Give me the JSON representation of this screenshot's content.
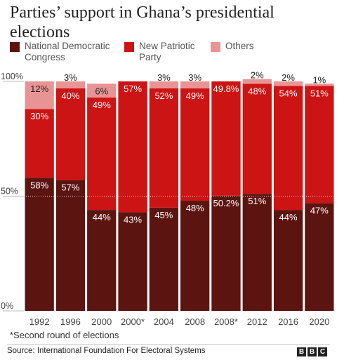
{
  "title": "Parties’ support in Ghana’s presidential elections",
  "legend": [
    {
      "label": "National Democratic Congress",
      "color": "#5c1410"
    },
    {
      "label": "New Patriotic Party",
      "color": "#cc1414"
    },
    {
      "label": "Others",
      "color": "#e99494"
    }
  ],
  "footnote": "*Second round of elections",
  "source": "Source: International Foundation For Electoral Systems",
  "logo": [
    "B",
    "B",
    "C"
  ],
  "chart_data": {
    "type": "bar",
    "stacked": true,
    "categories": [
      "1992",
      "1996",
      "2000",
      "2000*",
      "2004",
      "2008",
      "2008*",
      "2012",
      "2016",
      "2020"
    ],
    "series": [
      {
        "name": "National Democratic Congress",
        "color": "#5c1410",
        "values": [
          58,
          57,
          44,
          43,
          45,
          48,
          50.2,
          51,
          44,
          47
        ],
        "labels": [
          "58%",
          "57%",
          "44%",
          "43%",
          "45%",
          "48%",
          "50.2%",
          "51%",
          "44%",
          "47%"
        ]
      },
      {
        "name": "New Patriotic Party",
        "color": "#cc1414",
        "values": [
          30,
          40,
          49,
          57,
          52,
          49,
          49.8,
          48,
          54,
          51
        ],
        "labels": [
          "30%",
          "40%",
          "49%",
          "57%",
          "52%",
          "49%",
          "49.8%",
          "48%",
          "54%",
          "51%"
        ]
      },
      {
        "name": "Others",
        "color": "#e99494",
        "values": [
          12,
          3,
          6,
          0,
          3,
          3,
          0,
          2,
          2,
          1
        ],
        "labels": [
          "12%",
          "3%",
          "6%",
          "",
          "3%",
          "3%",
          "",
          "2%",
          "2%",
          "1%"
        ]
      }
    ],
    "y_ticks": [
      0,
      50,
      100
    ],
    "y_tick_labels": [
      "0%",
      "50%",
      "100%"
    ],
    "ylim": [
      0,
      100
    ],
    "reference_line": 50,
    "xlabel": "",
    "ylabel": ""
  }
}
